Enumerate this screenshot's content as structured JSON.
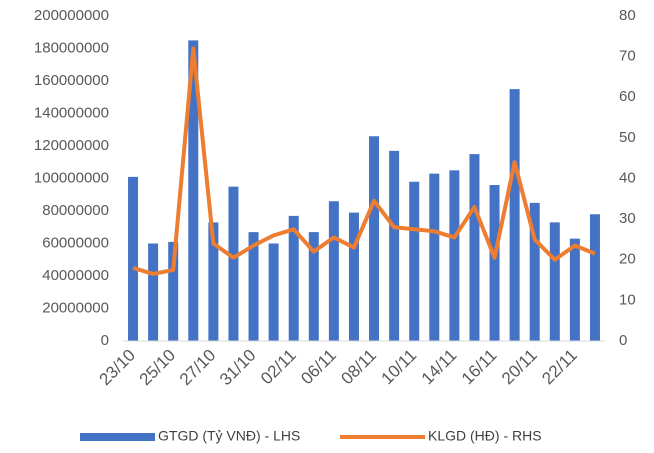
{
  "chart_data": {
    "type": "bar_line",
    "categories": [
      "23/10",
      null,
      "25/10",
      null,
      "27/10",
      null,
      "31/10",
      null,
      "02/11",
      null,
      "06/11",
      null,
      "08/11",
      null,
      "10/11",
      null,
      "14/11",
      null,
      "16/11",
      null,
      "20/11",
      null,
      "22/11",
      null
    ],
    "series": [
      {
        "name": "GTGD (Tỷ VNĐ) - LHS",
        "type": "bar",
        "color": "#4472c4",
        "values": [
          101000000,
          60000000,
          61000000,
          185000000,
          73000000,
          95000000,
          67000000,
          60000000,
          77000000,
          67000000,
          86000000,
          79000000,
          126000000,
          117000000,
          98000000,
          103000000,
          105000000,
          115000000,
          96000000,
          155000000,
          85000000,
          73000000,
          63000000,
          78000000
        ]
      },
      {
        "name": "KLGD (HĐ) - RHS",
        "type": "line",
        "axis": "y2",
        "color": "#ed7d31",
        "values": [
          18,
          16.5,
          17.5,
          72,
          24,
          20.5,
          23.5,
          26,
          27.5,
          22,
          25.5,
          23,
          34.5,
          28,
          27.5,
          27,
          25.5,
          33,
          20.5,
          44,
          25,
          20,
          23.5,
          21.5
        ]
      }
    ],
    "ylim": [
      0,
      200000000
    ],
    "yticks": [
      0,
      20000000,
      40000000,
      60000000,
      80000000,
      100000000,
      120000000,
      140000000,
      160000000,
      180000000,
      200000000
    ],
    "y2lim": [
      0,
      80
    ],
    "y2ticks": [
      0,
      10,
      20,
      30,
      40,
      50,
      60,
      70,
      80
    ],
    "grid": false,
    "legend": "bottom"
  }
}
